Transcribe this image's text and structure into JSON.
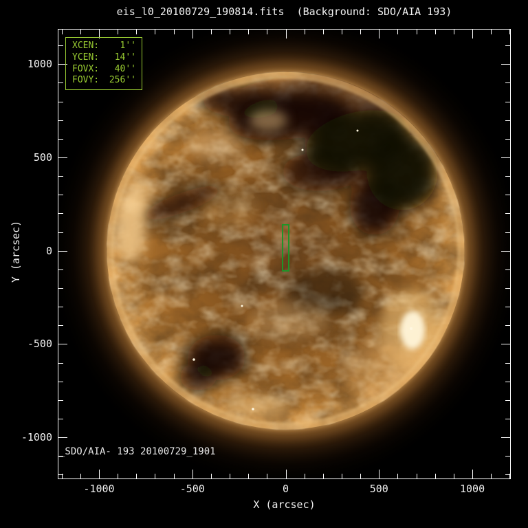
{
  "title": "eis_l0_20100729_190814.fits  (Background: SDO/AIA 193)",
  "info_box": {
    "rows": [
      {
        "label": "XCEN:",
        "value": "1''"
      },
      {
        "label": "YCEN:",
        "value": "14''"
      },
      {
        "label": "FOVX:",
        "value": "40''"
      },
      {
        "label": "FOVY:",
        "value": "256''"
      }
    ]
  },
  "watermark": "_SDO/AIA- 193 20100729_1901",
  "axes": {
    "x": {
      "label": "X (arcsec)",
      "min": -1221,
      "max": 1206,
      "major_ticks": [
        -1000,
        -500,
        0,
        500,
        1000
      ],
      "minor_step": 100
    },
    "y": {
      "label": "Y (arcsec)",
      "min": -1224,
      "max": 1189,
      "major_ticks": [
        -1000,
        -500,
        0,
        500,
        1000
      ],
      "minor_step": 100
    }
  },
  "fov": {
    "xcen": 1,
    "ycen": 14,
    "fovx": 40,
    "fovy": 256
  },
  "colors": {
    "annotation_green": "#9acd32",
    "fov_green": "#1f9428",
    "frame_white": "#ffffff",
    "background": "#000000",
    "disk_bronze": "#9c6527",
    "limb_gold": "#e9b36b"
  },
  "chart_data": {
    "type": "heatmap",
    "title": "eis_l0_20100729_190814.fits  (Background: SDO/AIA 193)",
    "xlabel": "X (arcsec)",
    "ylabel": "Y (arcsec)",
    "xlim": [
      -1221,
      1206
    ],
    "ylim": [
      -1224,
      1189
    ],
    "x_ticks": [
      -1000,
      -500,
      0,
      500,
      1000
    ],
    "y_ticks": [
      -1000,
      -500,
      0,
      500,
      1000
    ],
    "grid": false,
    "image": {
      "description": "Full-disk SDO/AIA 193 A EUV image of the Sun in a gold/bronze colormap on a black sky, with fuzzy coronal glow beyond the limb",
      "solar_disk": {
        "center_arcsec": [
          0,
          0
        ],
        "radius_arcsec": 960
      },
      "features": [
        {
          "type": "coronal-hole",
          "approx_center_arcsec": [
            310,
            550
          ],
          "extent_arcsec": [
            900,
            450
          ],
          "note": "large dark coronal hole across northern hemisphere extending to NE limb"
        },
        {
          "type": "coronal-hole",
          "approx_center_arcsec": [
            -370,
            -570
          ],
          "extent_arcsec": [
            300,
            240
          ],
          "note": "small dark coronal hole southwest of disk center"
        },
        {
          "type": "dark-filament-lane",
          "approx_center_arcsec": [
            -555,
            255
          ],
          "extent_arcsec": [
            480,
            100
          ]
        },
        {
          "type": "bright-active-region",
          "approx_center_arcsec": [
            680,
            -425
          ],
          "note": "brightest patch, near SE limb"
        },
        {
          "type": "bright-region",
          "approx_center_arcsec": [
            -830,
            130
          ],
          "note": "bright plumes at W limb"
        },
        {
          "type": "bright-region",
          "approx_center_arcsec": [
            -150,
            -830
          ],
          "note": "bright lane near S limb"
        }
      ]
    },
    "overlays": [
      {
        "kind": "fov_rectangle",
        "xcen_arcsec": 1,
        "ycen_arcsec": 14,
        "fovx_arcsec": 40,
        "fovy_arcsec": 256,
        "color": "#1f9428"
      },
      {
        "kind": "text_box",
        "lines": [
          "XCEN:  1''",
          "YCEN:  14''",
          "FOVX:  40''",
          "FOVY:  256''"
        ],
        "color": "#9acd32",
        "position": "top-left"
      },
      {
        "kind": "text",
        "text": "_SDO/AIA- 193 20100729_1901",
        "position": "bottom-left"
      }
    ],
    "legend": null
  }
}
